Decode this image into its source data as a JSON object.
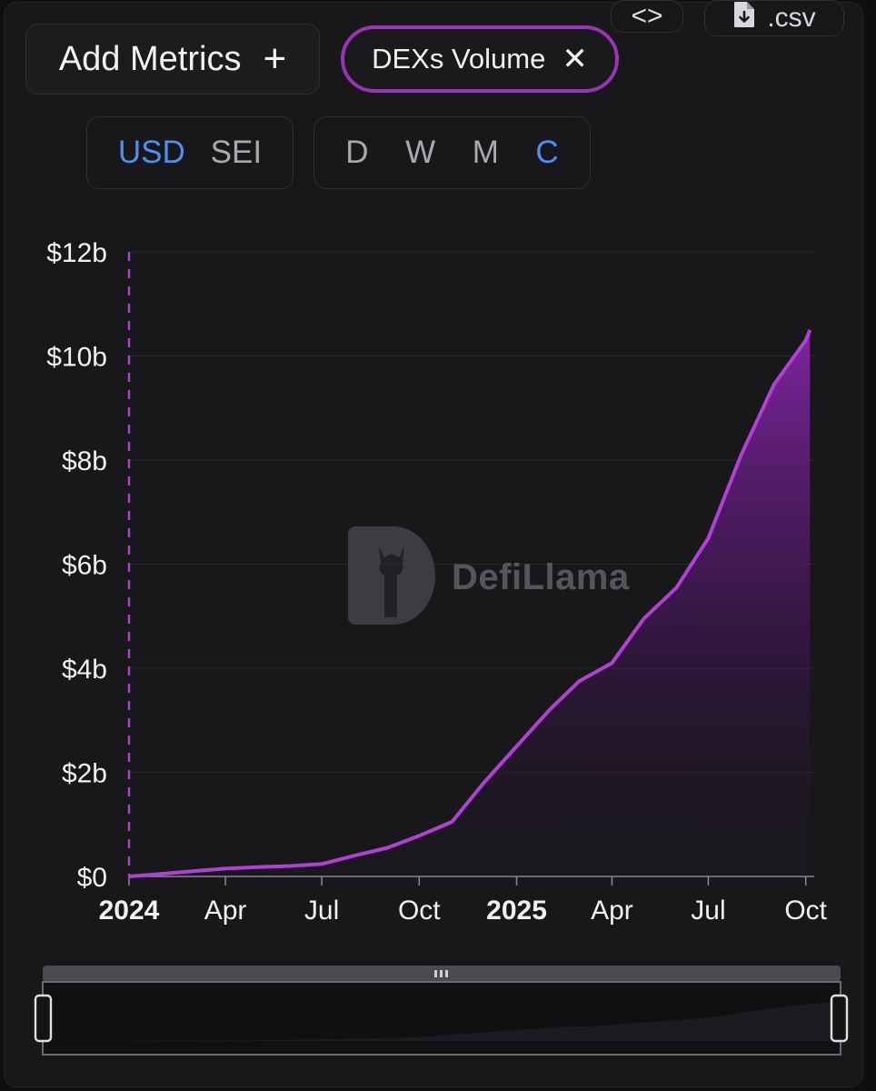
{
  "toolbar": {
    "add_metrics_label": "Add Metrics",
    "add_icon": "plus-icon",
    "active_metric": "DEXs Volume",
    "remove_icon": "close-icon",
    "currency_options": [
      "USD",
      "SEI"
    ],
    "currency_selected": "USD",
    "period_options": [
      "D",
      "W",
      "M",
      "C"
    ],
    "period_selected": "C",
    "embed_icon": "code-brackets-icon",
    "csv_label": ".csv",
    "csv_icon": "file-download-icon"
  },
  "watermark": {
    "text": "DefiLlama",
    "icon": "llama-logo-icon"
  },
  "colors": {
    "background": "#18181b",
    "line": "#b23fd6",
    "accent_blue": "#4d8ff3",
    "pill_border": "#9b32b8"
  },
  "chart_data": {
    "type": "area",
    "title": "",
    "xlabel": "",
    "ylabel": "",
    "ylim": [
      0,
      12
    ],
    "y_unit": "billion USD",
    "y_ticks": [
      "$0",
      "$2b",
      "$4b",
      "$6b",
      "$8b",
      "$10b",
      "$12b"
    ],
    "y_tick_values": [
      0,
      2,
      4,
      6,
      8,
      10,
      12
    ],
    "x_ticks": [
      {
        "label": "2024",
        "date": "2024-01-01",
        "bold": true
      },
      {
        "label": "Apr",
        "date": "2024-04-01",
        "bold": false
      },
      {
        "label": "Jul",
        "date": "2024-07-01",
        "bold": false
      },
      {
        "label": "Oct",
        "date": "2024-10-01",
        "bold": false
      },
      {
        "label": "2025",
        "date": "2025-01-01",
        "bold": true
      },
      {
        "label": "Apr",
        "date": "2025-04-01",
        "bold": false
      },
      {
        "label": "Jul",
        "date": "2025-07-01",
        "bold": false
      },
      {
        "label": "Oct",
        "date": "2025-10-01",
        "bold": false
      }
    ],
    "grid": true,
    "series": [
      {
        "name": "DEXs Volume",
        "cumulative": true,
        "points": [
          {
            "x": "2024-01-01",
            "y": 0.0
          },
          {
            "x": "2024-02-01",
            "y": 0.05
          },
          {
            "x": "2024-03-01",
            "y": 0.1
          },
          {
            "x": "2024-04-01",
            "y": 0.15
          },
          {
            "x": "2024-05-01",
            "y": 0.18
          },
          {
            "x": "2024-06-01",
            "y": 0.2
          },
          {
            "x": "2024-07-01",
            "y": 0.24
          },
          {
            "x": "2024-08-01",
            "y": 0.4
          },
          {
            "x": "2024-09-01",
            "y": 0.55
          },
          {
            "x": "2024-10-01",
            "y": 0.78
          },
          {
            "x": "2024-11-01",
            "y": 1.05
          },
          {
            "x": "2024-12-01",
            "y": 1.8
          },
          {
            "x": "2025-01-01",
            "y": 2.5
          },
          {
            "x": "2025-02-01",
            "y": 3.2
          },
          {
            "x": "2025-03-01",
            "y": 3.75
          },
          {
            "x": "2025-04-01",
            "y": 4.1
          },
          {
            "x": "2025-05-01",
            "y": 4.95
          },
          {
            "x": "2025-06-01",
            "y": 5.55
          },
          {
            "x": "2025-07-01",
            "y": 6.5
          },
          {
            "x": "2025-08-01",
            "y": 8.1
          },
          {
            "x": "2025-09-01",
            "y": 9.45
          },
          {
            "x": "2025-10-01",
            "y": 10.3
          },
          {
            "x": "2025-10-05",
            "y": 10.5
          }
        ]
      }
    ],
    "marker_line_date": "2024-01-01"
  }
}
